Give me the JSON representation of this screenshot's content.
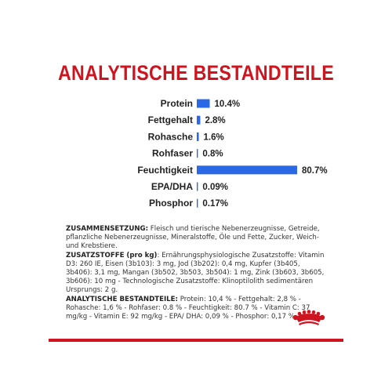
{
  "colors": {
    "title": "#d0141f",
    "bar": "#2a68e6",
    "rule": "#d0141f",
    "crown": "#d0141f"
  },
  "chart_data": {
    "type": "bar",
    "title": "ANALYTISCHE BESTANDTEILE",
    "orientation": "horizontal",
    "categories": [
      "Protein",
      "Fettgehalt",
      "Rohasche",
      "Rohfaser",
      "Feuchtigkeit",
      "EPA/DHA",
      "Phosphor"
    ],
    "values": [
      10.4,
      2.8,
      1.6,
      0.8,
      80.7,
      0.09,
      0.17
    ],
    "value_labels": [
      "10.4%",
      "2.8%",
      "1.6%",
      "0.8%",
      "80.7%",
      "0.09%",
      "0.17%"
    ],
    "unit": "%",
    "xlim": [
      0,
      80.7
    ],
    "grid": false,
    "legend": "none"
  },
  "composition": {
    "zusammensetzung_heading": "ZUSAMMENSETZUNG:",
    "zusammensetzung_text": " Fleisch und tierische Nebenerzeugnisse, Getreide, pflanzliche Nebenerzeugnisse, Mineralstoffe, Öle und Fette, Zucker, Weich- und Krebstiere.",
    "zusatzstoffe_heading": "ZUSATZSTOFFE (pro kg)",
    "zusatzstoffe_text": ": Ernährungsphysiologische Zusatzstoffe: Vitamin D3: 260 IE, Eisen (3b103): 3 mg, Jod (3b202): 0,4 mg, Kupfer (3b405, 3b406): 3,1 mg, Mangan (3b502, 3b503, 3b504): 1 mg, Zink (3b603, 3b605, 3b606): 10 mg - Technologische Zusatzstoffe: Klinoptilolith sedimentären Ursprungs: 2 g.",
    "analytische_heading": "ANALYTISCHE BESTANDTEILE:",
    "analytische_text": " Protein: 10,4 % - Fettgehalt: 2,8 % - Rohasche: 1,6 % - Rohfaser: 0.8 % - Feuchtigkeit: 80.7 % - Vitamin C: 37 mg/kg - Vitamin E: 92 mg/kg - EPA/ DHA: 0,09 % - Phosphor: 0,17 %."
  },
  "logo": {
    "icon": "royal-canin-crown-icon"
  }
}
